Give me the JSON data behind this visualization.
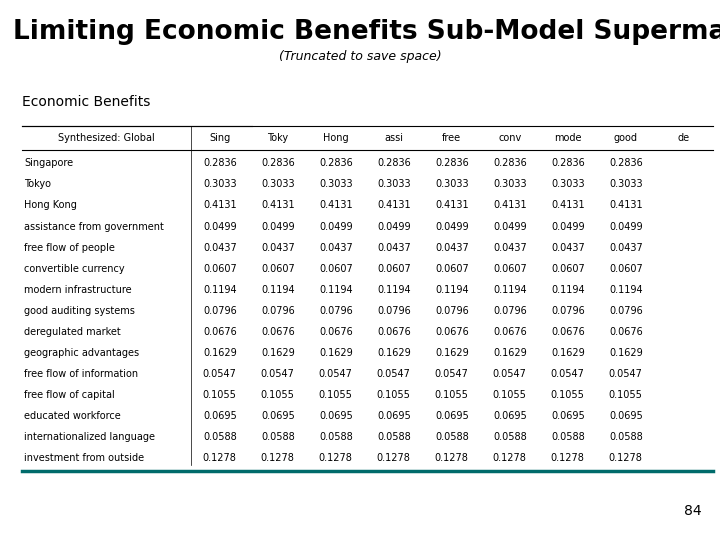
{
  "title": "Limiting Economic Benefits Sub-Model Supermatrix",
  "subtitle": "(Truncated to save space)",
  "section_label": "Economic Benefits",
  "col_header": [
    "Synthesized: Global",
    "Sing",
    "Toky",
    "Hong",
    "assi",
    "free",
    "conv",
    "mode",
    "good",
    "de"
  ],
  "rows": [
    [
      "Singapore",
      "0.2836",
      "0.2836",
      "0.2836",
      "0.2836",
      "0.2836",
      "0.2836",
      "0.2836",
      "0.2836",
      ""
    ],
    [
      "Tokyo",
      "0.3033",
      "0.3033",
      "0.3033",
      "0.3033",
      "0.3033",
      "0.3033",
      "0.3033",
      "0.3033",
      ""
    ],
    [
      "Hong Kong",
      "0.4131",
      "0.4131",
      "0.4131",
      "0.4131",
      "0.4131",
      "0.4131",
      "0.4131",
      "0.4131",
      ""
    ],
    [
      "assistance from government",
      "0.0499",
      "0.0499",
      "0.0499",
      "0.0499",
      "0.0499",
      "0.0499",
      "0.0499",
      "0.0499",
      ""
    ],
    [
      "free flow of people",
      "0.0437",
      "0.0437",
      "0.0437",
      "0.0437",
      "0.0437",
      "0.0437",
      "0.0437",
      "0.0437",
      ""
    ],
    [
      "convertible currency",
      "0.0607",
      "0.0607",
      "0.0607",
      "0.0607",
      "0.0607",
      "0.0607",
      "0.0607",
      "0.0607",
      ""
    ],
    [
      "modern infrastructure",
      "0.1194",
      "0.1194",
      "0.1194",
      "0.1194",
      "0.1194",
      "0.1194",
      "0.1194",
      "0.1194",
      ""
    ],
    [
      "good auditing systems",
      "0.0796",
      "0.0796",
      "0.0796",
      "0.0796",
      "0.0796",
      "0.0796",
      "0.0796",
      "0.0796",
      ""
    ],
    [
      "deregulated market",
      "0.0676",
      "0.0676",
      "0.0676",
      "0.0676",
      "0.0676",
      "0.0676",
      "0.0676",
      "0.0676",
      ""
    ],
    [
      "geographic advantages",
      "0.1629",
      "0.1629",
      "0.1629",
      "0.1629",
      "0.1629",
      "0.1629",
      "0.1629",
      "0.1629",
      ""
    ],
    [
      "free flow of information",
      "0.0547",
      "0.0547",
      "0.0547",
      "0.0547",
      "0.0547",
      "0.0547",
      "0.0547",
      "0.0547",
      ""
    ],
    [
      "free flow of capital",
      "0.1055",
      "0.1055",
      "0.1055",
      "0.1055",
      "0.1055",
      "0.1055",
      "0.1055",
      "0.1055",
      ""
    ],
    [
      "educated workforce",
      "0.0695",
      "0.0695",
      "0.0695",
      "0.0695",
      "0.0695",
      "0.0695",
      "0.0695",
      "0.0695",
      ""
    ],
    [
      "internationalized language",
      "0.0588",
      "0.0588",
      "0.0588",
      "0.0588",
      "0.0588",
      "0.0588",
      "0.0588",
      "0.0588",
      ""
    ],
    [
      "investment from outside",
      "0.1278",
      "0.1278",
      "0.1278",
      "0.1278",
      "0.1278",
      "0.1278",
      "0.1278",
      "0.1278",
      ""
    ]
  ],
  "page_number": "84",
  "teal_color": "#006b6b",
  "background_color": "#ffffff",
  "title_fontsize": 19,
  "subtitle_fontsize": 9,
  "section_fontsize": 10,
  "header_fontsize": 7,
  "data_fontsize": 7,
  "page_fontsize": 10
}
